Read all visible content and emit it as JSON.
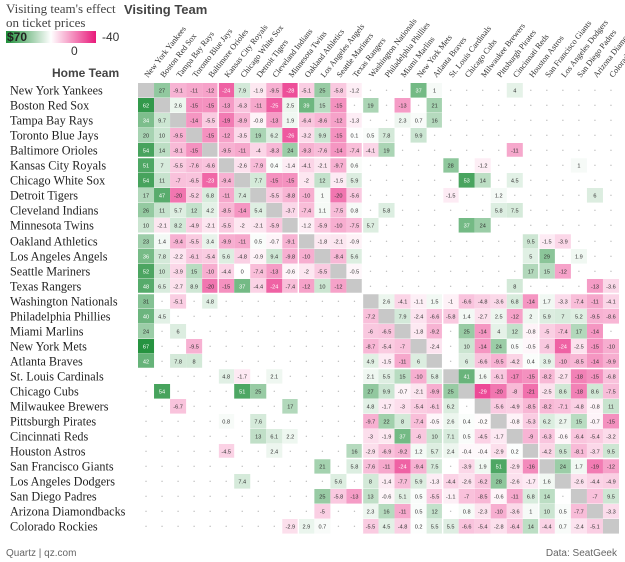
{
  "subtitle": "Visiting team's effect on ticket prices",
  "visiting_title": "Visiting Team",
  "home_title": "Home Team",
  "legend": {
    "left_label": "$70",
    "mid_label": "0",
    "right_label": "-40",
    "pos_color": "#1f8f3a",
    "neg_color": "#e8197a",
    "zero_color": "#ffffff"
  },
  "credit": "Quartz | qz.com",
  "source": "Data: SeatGeek",
  "chart_data": {
    "type": "heatmap",
    "xlabel": "Visiting Team",
    "ylabel": "Home Team",
    "value_range": [
      -40,
      70
    ],
    "teams": [
      "New York Yankees",
      "Boston Red Sox",
      "Tampa Bay Rays",
      "Toronto Blue Jays",
      "Baltimore Orioles",
      "Kansas City Royals",
      "Chicago White Sox",
      "Detroit Tigers",
      "Cleveland Indians",
      "Minnesota Twins",
      "Oakland Athletics",
      "Los Angeles Angels",
      "Seattle Mariners",
      "Texas Rangers",
      "Washington Nationals",
      "Philadelphia Phillies",
      "Miami Marlins",
      "New York Mets",
      "Atlanta Braves",
      "St. Louis Cardinals",
      "Chicago Cubs",
      "Milwaukee Brewers",
      "Pittsburgh Pirates",
      "Cincinnati Reds",
      "Houston Astros",
      "San Francisco Giants",
      "Los Angeles Dodgers",
      "San Diego Padres",
      "Arizona Diamondbacks",
      "Colorado Rockies"
    ],
    "values": [
      [
        null,
        27,
        -9.1,
        -11,
        -12,
        -24,
        7.9,
        -1.9,
        -9.5,
        -28,
        -5.1,
        25,
        -5.8,
        -1.2,
        null,
        null,
        null,
        37,
        1,
        null,
        null,
        null,
        null,
        4,
        null,
        null,
        null,
        null,
        null,
        null
      ],
      [
        62,
        null,
        2.6,
        -15,
        -15,
        -13,
        -6.3,
        -11,
        -25,
        2.5,
        39,
        15,
        -15,
        null,
        19,
        null,
        -13,
        null,
        21,
        null,
        null,
        null,
        null,
        null,
        null,
        null,
        null,
        null,
        null,
        null
      ],
      [
        34,
        9.7,
        null,
        -14,
        -5.5,
        -19,
        -8.9,
        -0.8,
        -13,
        1.9,
        -6.4,
        -8.6,
        -12,
        -1.3,
        null,
        null,
        2.3,
        0.7,
        16,
        null,
        null,
        null,
        null,
        null,
        null,
        null,
        null,
        null,
        null,
        null
      ],
      [
        20,
        10,
        -9.5,
        null,
        -15,
        -12,
        -3.5,
        19,
        6.2,
        -26,
        -3.2,
        9.9,
        -15,
        0.1,
        0.5,
        7.8,
        null,
        9.9,
        null,
        null,
        null,
        null,
        null,
        null,
        null,
        null,
        null,
        null,
        null,
        null
      ],
      [
        54,
        14,
        -8.1,
        -15,
        null,
        -9.5,
        -11,
        -4,
        -8.3,
        24,
        -9.3,
        -7.6,
        -14,
        -7.4,
        -4.1,
        19,
        null,
        null,
        null,
        null,
        null,
        null,
        null,
        -11,
        null,
        null,
        null,
        null,
        null,
        null
      ],
      [
        51,
        7,
        -5.5,
        -7.6,
        -6.6,
        null,
        -2.6,
        -7.9,
        0.4,
        -1.4,
        -4.1,
        -2.1,
        -9.7,
        0.6,
        null,
        null,
        null,
        null,
        null,
        28,
        null,
        -1.2,
        null,
        null,
        null,
        null,
        null,
        1,
        null,
        null
      ],
      [
        54,
        11,
        -7,
        -6.5,
        -23,
        -9.4,
        null,
        7.7,
        -15,
        -15,
        -2,
        12,
        -1.5,
        5.9,
        null,
        null,
        null,
        null,
        null,
        null,
        53,
        14,
        null,
        4.5,
        null,
        null,
        null,
        null,
        null,
        null
      ],
      [
        17,
        47,
        -20,
        -5.2,
        6.8,
        -11,
        7.4,
        null,
        -5.5,
        -8.8,
        -10,
        1,
        -20,
        -5.6,
        null,
        null,
        null,
        null,
        null,
        -1.5,
        null,
        null,
        1.2,
        null,
        null,
        null,
        null,
        null,
        6,
        null
      ],
      [
        26,
        11,
        5.7,
        12,
        4.2,
        -8.5,
        -14,
        5.4,
        null,
        -3.7,
        -7.4,
        1.1,
        -7.5,
        0.8,
        null,
        5.8,
        null,
        null,
        null,
        null,
        null,
        null,
        5.8,
        7.5,
        null,
        null,
        null,
        null,
        null,
        null
      ],
      [
        10,
        -2.1,
        8.2,
        -4.9,
        -2.1,
        -5.5,
        -2,
        -2.1,
        -5.9,
        null,
        -1.2,
        -5.9,
        -10,
        -7.5,
        5.7,
        null,
        null,
        null,
        null,
        null,
        37,
        24,
        null,
        null,
        null,
        null,
        null,
        null,
        null,
        null
      ],
      [
        23,
        1.4,
        -9.4,
        -5.5,
        3.4,
        -9.9,
        -11,
        0.5,
        -0.7,
        -9.1,
        null,
        -1.8,
        -2.1,
        -0.9,
        null,
        null,
        null,
        null,
        null,
        null,
        null,
        null,
        null,
        null,
        9.5,
        -1.5,
        -3.9,
        null,
        null,
        null
      ],
      [
        36,
        7.8,
        -2.2,
        -6.1,
        -5.4,
        5.6,
        -4.8,
        -0.9,
        9.4,
        -9.8,
        -10,
        null,
        -8.4,
        5.6,
        null,
        null,
        null,
        null,
        null,
        null,
        null,
        null,
        null,
        null,
        5,
        29,
        null,
        1.9,
        null,
        null
      ],
      [
        52,
        10,
        -3.9,
        15,
        -10,
        -4.4,
        0,
        -7.4,
        -13,
        -0.6,
        -2,
        -5.5,
        null,
        -0.5,
        null,
        null,
        null,
        null,
        null,
        null,
        null,
        null,
        null,
        null,
        17,
        15,
        -12,
        null,
        null,
        null
      ],
      [
        48,
        6.5,
        -2.7,
        8.9,
        -20,
        -15,
        37,
        -4.4,
        -24,
        -7.4,
        -12,
        10,
        -12,
        null,
        null,
        null,
        null,
        null,
        null,
        null,
        null,
        null,
        null,
        8,
        null,
        null,
        null,
        null,
        -13,
        -3.6
      ],
      [
        31,
        null,
        -5.1,
        null,
        4.8,
        null,
        null,
        null,
        null,
        null,
        null,
        null,
        null,
        null,
        null,
        2.6,
        -4.1,
        -1.1,
        1.5,
        -1,
        -6.6,
        -4.8,
        -3.6,
        6.8,
        -14,
        1.7,
        -3.3,
        -7.4,
        -11,
        -4.1
      ],
      [
        40,
        4.5,
        null,
        null,
        null,
        null,
        null,
        null,
        null,
        null,
        null,
        null,
        null,
        null,
        -7.2,
        null,
        7.9,
        -2.4,
        -6.6,
        -5.8,
        1.4,
        -2.7,
        2.5,
        -12,
        2,
        5.9,
        7,
        5.2,
        -9.5,
        -8.6
      ],
      [
        24,
        null,
        6,
        null,
        null,
        null,
        null,
        null,
        null,
        null,
        null,
        null,
        null,
        null,
        -6,
        -6.5,
        null,
        -1.8,
        -9.2,
        null,
        25,
        -14,
        4,
        12,
        -0.8,
        -5,
        -7.4,
        17,
        -14,
        null
      ],
      [
        67,
        null,
        null,
        -9.5,
        null,
        null,
        null,
        null,
        null,
        null,
        null,
        null,
        null,
        null,
        -8.7,
        -5.4,
        -7,
        null,
        -2.4,
        null,
        10,
        -14,
        24,
        0.5,
        -0.5,
        -6,
        -24,
        -2.5,
        -15,
        -10
      ],
      [
        42,
        null,
        7.8,
        8,
        null,
        null,
        null,
        null,
        null,
        null,
        null,
        null,
        null,
        null,
        4.9,
        -1.5,
        -11,
        6,
        null,
        null,
        6,
        -6.6,
        -9.5,
        -4.2,
        0.4,
        3.9,
        -10,
        -8.5,
        -14,
        -9.9
      ],
      [
        null,
        null,
        null,
        null,
        null,
        4.8,
        -1.7,
        null,
        2.1,
        null,
        null,
        null,
        null,
        null,
        2.1,
        5.5,
        15,
        -10,
        5.8,
        null,
        41,
        1.6,
        -6.1,
        -17,
        -15,
        -8.2,
        -2.7,
        -18,
        -15,
        -6.8
      ],
      [
        null,
        54,
        null,
        null,
        null,
        null,
        51,
        25,
        null,
        null,
        null,
        null,
        null,
        null,
        27,
        9.9,
        -0.7,
        -2.1,
        -9.9,
        25,
        null,
        -29,
        -20,
        -8,
        -21,
        -2.5,
        8.6,
        -18,
        8.6,
        -7.5
      ],
      [
        null,
        null,
        -6.7,
        null,
        null,
        null,
        null,
        null,
        null,
        17,
        null,
        null,
        null,
        null,
        4.8,
        -1.7,
        -3,
        -5.4,
        -6.1,
        6.2,
        null,
        null,
        -5.6,
        -4.9,
        -8.5,
        -8.2,
        -7.1,
        -4.8,
        -0.8,
        11
      ],
      [
        null,
        null,
        null,
        null,
        null,
        0.8,
        null,
        7.6,
        null,
        null,
        null,
        null,
        null,
        null,
        -9.7,
        22,
        8,
        -7.4,
        -0.5,
        2.6,
        0.4,
        -0.2,
        null,
        -0.8,
        -5.3,
        6.2,
        2.7,
        15,
        -0.7,
        -15
      ],
      [
        null,
        null,
        null,
        null,
        null,
        null,
        null,
        13,
        6.1,
        2.2,
        null,
        null,
        null,
        null,
        -3,
        -1.9,
        37,
        -6,
        10,
        7.1,
        0.5,
        -4.5,
        -1.7,
        null,
        -9,
        -6.3,
        -0.6,
        -6.4,
        -5.4,
        -3.2
      ],
      [
        null,
        null,
        null,
        null,
        null,
        -4.5,
        null,
        null,
        2.4,
        null,
        null,
        null,
        null,
        16,
        -2.9,
        -6.9,
        -9.2,
        1.2,
        5.7,
        2.4,
        -0.4,
        -0.4,
        -2.9,
        0.2,
        null,
        -4.2,
        9.5,
        -8.1,
        -3.7,
        9.5
      ],
      [
        null,
        null,
        null,
        null,
        null,
        null,
        null,
        null,
        null,
        null,
        null,
        21,
        null,
        5.8,
        -7.6,
        -11,
        -24,
        -9.4,
        7.5,
        null,
        -3.9,
        1.9,
        51,
        -2.9,
        -16,
        null,
        24,
        1.7,
        -19,
        -12
      ],
      [
        null,
        null,
        null,
        null,
        null,
        null,
        7.4,
        null,
        null,
        null,
        null,
        null,
        5.6,
        null,
        8,
        -1.4,
        -7.7,
        5.9,
        -1.3,
        -4.4,
        -2.6,
        -6.2,
        28,
        -2.6,
        -1.7,
        1.6,
        null,
        -2.6,
        -4.4,
        -4.9
      ],
      [
        null,
        null,
        null,
        null,
        null,
        null,
        null,
        null,
        null,
        null,
        null,
        25,
        -5.8,
        -13,
        13,
        -0.6,
        5.1,
        0.5,
        -5.5,
        -1.1,
        -7,
        -8.5,
        -0.6,
        -11,
        6.8,
        14,
        null,
        null,
        -7,
        9.5
      ],
      [
        null,
        null,
        null,
        null,
        null,
        null,
        null,
        null,
        null,
        null,
        null,
        -5,
        null,
        null,
        2.3,
        16,
        -11,
        0.5,
        12,
        null,
        0.8,
        -2.3,
        -10,
        -3.6,
        1,
        10,
        0.5,
        -7.7,
        null,
        -3.3
      ],
      [
        null,
        null,
        null,
        null,
        null,
        null,
        null,
        null,
        null,
        -2.9,
        2.9,
        0.7,
        null,
        null,
        -5.5,
        4.5,
        -4.8,
        0.2,
        5.5,
        5.5,
        -6.6,
        -5.4,
        -2.8,
        -6.4,
        14,
        -4.4,
        0.7,
        -2.4,
        -5.1,
        null
      ]
    ]
  }
}
